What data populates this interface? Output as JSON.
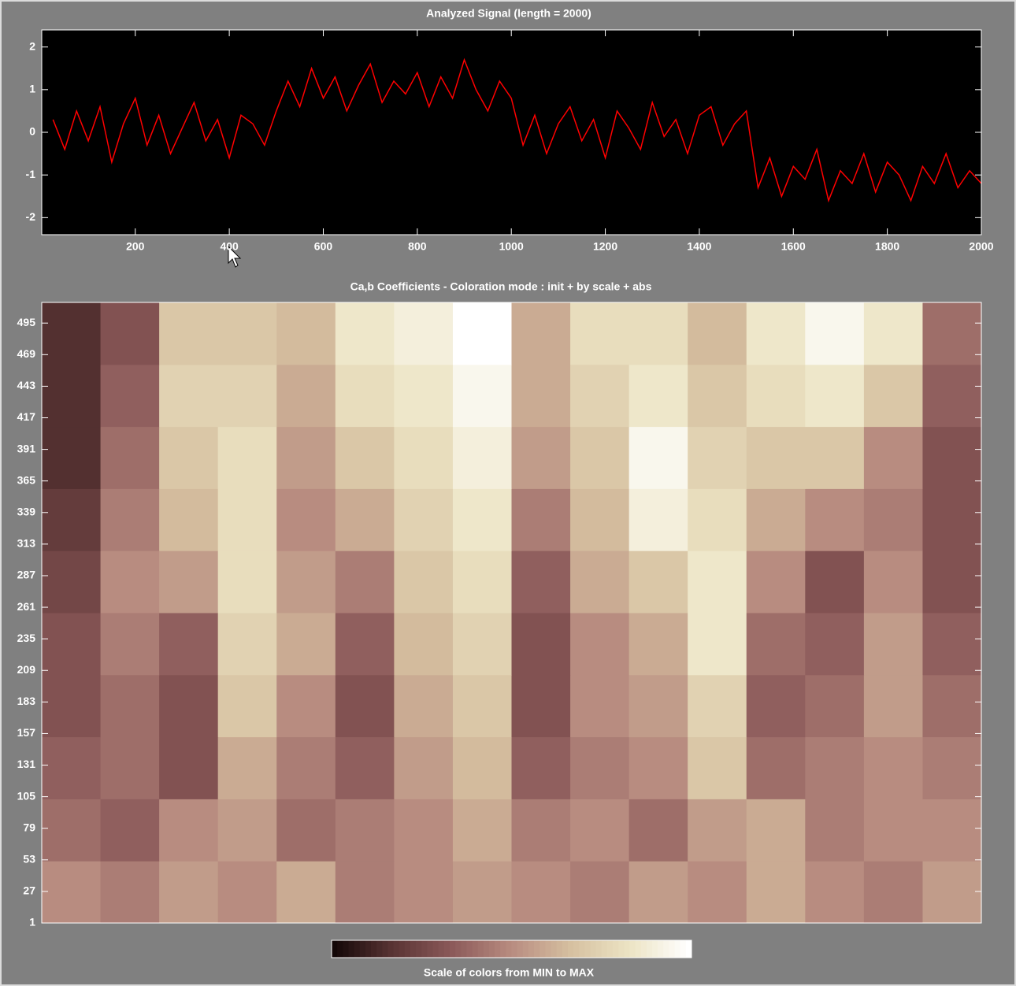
{
  "chart_data": [
    {
      "type": "line",
      "title": "Analyzed Signal  (length = 2000)",
      "x": [
        25,
        50,
        75,
        100,
        125,
        150,
        175,
        200,
        225,
        250,
        275,
        300,
        325,
        350,
        375,
        400,
        425,
        450,
        475,
        500,
        525,
        550,
        575,
        600,
        625,
        650,
        675,
        700,
        725,
        750,
        775,
        800,
        825,
        850,
        875,
        900,
        925,
        950,
        975,
        1000,
        1025,
        1050,
        1075,
        1100,
        1125,
        1150,
        1175,
        1200,
        1225,
        1250,
        1275,
        1300,
        1325,
        1350,
        1375,
        1400,
        1425,
        1450,
        1475,
        1500,
        1525,
        1550,
        1575,
        1600,
        1625,
        1650,
        1675,
        1700,
        1725,
        1750,
        1775,
        1800,
        1825,
        1850,
        1875,
        1900,
        1925,
        1950,
        1975,
        2000
      ],
      "series": [
        {
          "color": "#ff0000",
          "values": [
            0.3,
            -0.4,
            0.5,
            -0.2,
            0.6,
            -0.7,
            0.2,
            0.8,
            -0.3,
            0.4,
            -0.5,
            0.1,
            0.7,
            -0.2,
            0.3,
            -0.6,
            0.4,
            0.2,
            -0.3,
            0.5,
            1.2,
            0.6,
            1.5,
            0.8,
            1.3,
            0.5,
            1.1,
            1.6,
            0.7,
            1.2,
            0.9,
            1.4,
            0.6,
            1.3,
            0.8,
            1.7,
            1.0,
            0.5,
            1.2,
            0.8,
            -0.3,
            0.4,
            -0.5,
            0.2,
            0.6,
            -0.2,
            0.3,
            -0.6,
            0.5,
            0.1,
            -0.4,
            0.7,
            -0.1,
            0.3,
            -0.5,
            0.4,
            0.6,
            -0.3,
            0.2,
            0.5,
            -1.3,
            -0.6,
            -1.5,
            -0.8,
            -1.1,
            -0.4,
            -1.6,
            -0.9,
            -1.2,
            -0.5,
            -1.4,
            -0.7,
            -1.0,
            -1.6,
            -0.8,
            -1.2,
            -0.5,
            -1.3,
            -0.9,
            -1.2
          ]
        }
      ],
      "xlim": [
        1,
        2000
      ],
      "xticks": [
        200,
        400,
        600,
        800,
        1000,
        1200,
        1400,
        1600,
        1800,
        2000
      ],
      "ylim": [
        -2.4,
        2.4
      ],
      "yticks": [
        -2,
        -1,
        0,
        1,
        2
      ]
    },
    {
      "type": "heatmap",
      "title": "Ca,b Coefficients  - Coloration mode : init + by scale + abs",
      "xlim": [
        1,
        2000
      ],
      "ylim": [
        1,
        512
      ],
      "yticks": [
        1,
        27,
        53,
        79,
        105,
        131,
        157,
        183,
        209,
        235,
        261,
        287,
        313,
        339,
        365,
        391,
        417,
        443,
        469,
        495
      ],
      "colormap": [
        "#140808",
        "#5a3434",
        "#8c5a5a",
        "#b88c80",
        "#d6c0a0",
        "#ece4c4",
        "#ffffff"
      ],
      "colorbar_label": "Scale of colors from MIN to MAX",
      "values": [
        [
          0.5,
          0.45,
          0.55,
          0.5,
          0.6,
          0.45,
          0.5,
          0.55,
          0.5,
          0.45,
          0.55,
          0.5,
          0.6,
          0.5,
          0.45,
          0.55
        ],
        [
          0.4,
          0.35,
          0.5,
          0.55,
          0.4,
          0.45,
          0.5,
          0.6,
          0.45,
          0.5,
          0.4,
          0.55,
          0.6,
          0.45,
          0.5,
          0.5
        ],
        [
          0.35,
          0.4,
          0.3,
          0.6,
          0.45,
          0.35,
          0.55,
          0.65,
          0.35,
          0.45,
          0.5,
          0.7,
          0.4,
          0.45,
          0.5,
          0.45
        ],
        [
          0.3,
          0.4,
          0.3,
          0.7,
          0.5,
          0.3,
          0.6,
          0.7,
          0.3,
          0.5,
          0.55,
          0.75,
          0.35,
          0.4,
          0.55,
          0.4
        ],
        [
          0.3,
          0.45,
          0.35,
          0.75,
          0.6,
          0.35,
          0.65,
          0.75,
          0.3,
          0.5,
          0.6,
          0.85,
          0.4,
          0.35,
          0.55,
          0.35
        ],
        [
          0.25,
          0.5,
          0.55,
          0.8,
          0.55,
          0.45,
          0.7,
          0.8,
          0.35,
          0.6,
          0.7,
          0.85,
          0.5,
          0.3,
          0.5,
          0.3
        ],
        [
          0.2,
          0.45,
          0.65,
          0.8,
          0.5,
          0.6,
          0.75,
          0.85,
          0.45,
          0.65,
          0.9,
          0.8,
          0.6,
          0.5,
          0.45,
          0.3
        ],
        [
          0.15,
          0.4,
          0.7,
          0.8,
          0.55,
          0.7,
          0.8,
          0.9,
          0.55,
          0.7,
          0.95,
          0.75,
          0.7,
          0.7,
          0.5,
          0.3
        ],
        [
          0.15,
          0.35,
          0.75,
          0.75,
          0.6,
          0.8,
          0.85,
          0.95,
          0.6,
          0.75,
          0.85,
          0.7,
          0.8,
          0.85,
          0.7,
          0.35
        ],
        [
          0.15,
          0.3,
          0.7,
          0.7,
          0.65,
          0.85,
          0.9,
          1.0,
          0.6,
          0.8,
          0.8,
          0.65,
          0.85,
          0.95,
          0.85,
          0.4
        ]
      ]
    }
  ]
}
